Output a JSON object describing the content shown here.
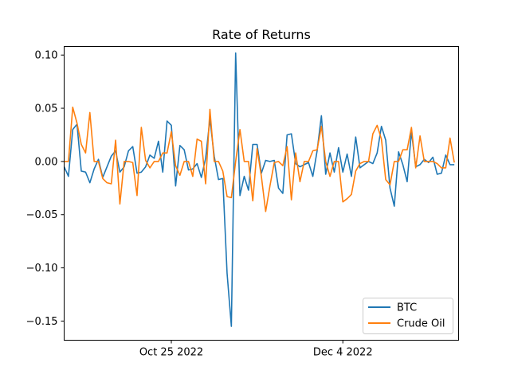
{
  "chart_data": {
    "type": "line",
    "title": "Rate of Returns",
    "xlabel": "",
    "ylabel": "",
    "x_start": "2022-09-30",
    "x_end": "2022-12-31",
    "x_ticks": [
      {
        "date": "2022-10-25",
        "label": "Oct 25 2022"
      },
      {
        "date": "2022-12-04",
        "label": "Dec 4 2022"
      }
    ],
    "ylim": [
      -0.168,
      0.108
    ],
    "y_ticks": [
      {
        "value": 0.1,
        "label": "0.10"
      },
      {
        "value": 0.05,
        "label": "0.05"
      },
      {
        "value": 0.0,
        "label": "0.00"
      },
      {
        "value": -0.05,
        "label": "−0.05"
      },
      {
        "value": -0.1,
        "label": "−0.10"
      },
      {
        "value": -0.15,
        "label": "−0.15"
      }
    ],
    "grid": false,
    "legend_position": "lower-right",
    "series": [
      {
        "name": "BTC",
        "color": "#1f77b4",
        "points": [
          [
            "2022-09-30",
            -0.005
          ],
          [
            "2022-10-01",
            -0.014
          ],
          [
            "2022-10-02",
            0.03
          ],
          [
            "2022-10-03",
            0.035
          ],
          [
            "2022-10-04",
            -0.009
          ],
          [
            "2022-10-05",
            -0.01
          ],
          [
            "2022-10-06",
            -0.02
          ],
          [
            "2022-10-07",
            -0.007
          ],
          [
            "2022-10-08",
            0.002
          ],
          [
            "2022-10-09",
            -0.015
          ],
          [
            "2022-10-10",
            -0.005
          ],
          [
            "2022-10-11",
            0.005
          ],
          [
            "2022-10-12",
            0.01
          ],
          [
            "2022-10-13",
            -0.01
          ],
          [
            "2022-10-14",
            -0.005
          ],
          [
            "2022-10-15",
            0.01
          ],
          [
            "2022-10-16",
            0.014
          ],
          [
            "2022-10-17",
            -0.011
          ],
          [
            "2022-10-18",
            -0.01
          ],
          [
            "2022-10-19",
            -0.005
          ],
          [
            "2022-10-20",
            0.006
          ],
          [
            "2022-10-21",
            0.003
          ],
          [
            "2022-10-22",
            0.019
          ],
          [
            "2022-10-23",
            -0.01
          ],
          [
            "2022-10-24",
            0.038
          ],
          [
            "2022-10-25",
            0.034
          ],
          [
            "2022-10-26",
            -0.023
          ],
          [
            "2022-10-27",
            0.015
          ],
          [
            "2022-10-28",
            0.011
          ],
          [
            "2022-10-29",
            -0.008
          ],
          [
            "2022-10-30",
            -0.007
          ],
          [
            "2022-10-31",
            -0.002
          ],
          [
            "2022-11-01",
            -0.015
          ],
          [
            "2022-11-02",
            0.003
          ],
          [
            "2022-11-03",
            0.04
          ],
          [
            "2022-11-04",
            0.005
          ],
          [
            "2022-11-05",
            -0.017
          ],
          [
            "2022-11-06",
            -0.016
          ],
          [
            "2022-11-07",
            -0.105
          ],
          [
            "2022-11-08",
            -0.155
          ],
          [
            "2022-11-09",
            0.102
          ],
          [
            "2022-11-10",
            -0.032
          ],
          [
            "2022-11-11",
            -0.014
          ],
          [
            "2022-11-12",
            -0.027
          ],
          [
            "2022-11-13",
            0.016
          ],
          [
            "2022-11-14",
            0.016
          ],
          [
            "2022-11-15",
            -0.011
          ],
          [
            "2022-11-16",
            0.001
          ],
          [
            "2022-11-17",
            0.0
          ],
          [
            "2022-11-18",
            0.001
          ],
          [
            "2022-11-19",
            -0.025
          ],
          [
            "2022-11-20",
            -0.03
          ],
          [
            "2022-11-21",
            0.025
          ],
          [
            "2022-11-22",
            0.026
          ],
          [
            "2022-11-23",
            -0.002
          ],
          [
            "2022-11-24",
            -0.005
          ],
          [
            "2022-11-25",
            -0.003
          ],
          [
            "2022-11-26",
            -0.001
          ],
          [
            "2022-11-27",
            -0.014
          ],
          [
            "2022-11-28",
            0.01
          ],
          [
            "2022-11-29",
            0.043
          ],
          [
            "2022-11-30",
            -0.012
          ],
          [
            "2022-12-01",
            0.008
          ],
          [
            "2022-12-02",
            -0.01
          ],
          [
            "2022-12-03",
            0.013
          ],
          [
            "2022-12-04",
            -0.01
          ],
          [
            "2022-12-05",
            0.007
          ],
          [
            "2022-12-06",
            -0.014
          ],
          [
            "2022-12-07",
            0.023
          ],
          [
            "2022-12-08",
            -0.006
          ],
          [
            "2022-12-09",
            -0.003
          ],
          [
            "2022-12-10",
            0.0
          ],
          [
            "2022-12-11",
            -0.002
          ],
          [
            "2022-12-12",
            0.008
          ],
          [
            "2022-12-13",
            0.033
          ],
          [
            "2022-12-14",
            0.02
          ],
          [
            "2022-12-15",
            -0.025
          ],
          [
            "2022-12-16",
            -0.042
          ],
          [
            "2022-12-17",
            0.009
          ],
          [
            "2022-12-18",
            -0.003
          ],
          [
            "2022-12-19",
            -0.019
          ],
          [
            "2022-12-20",
            0.028
          ],
          [
            "2022-12-21",
            -0.005
          ],
          [
            "2022-12-22",
            -0.003
          ],
          [
            "2022-12-23",
            0.002
          ],
          [
            "2022-12-24",
            -0.001
          ],
          [
            "2022-12-25",
            0.004
          ],
          [
            "2022-12-26",
            -0.012
          ],
          [
            "2022-12-27",
            -0.011
          ],
          [
            "2022-12-28",
            0.006
          ],
          [
            "2022-12-29",
            -0.003
          ],
          [
            "2022-12-30",
            -0.003
          ]
        ]
      },
      {
        "name": "Crude Oil",
        "color": "#ff7f0e",
        "points": [
          [
            "2022-09-30",
            0.0
          ],
          [
            "2022-10-01",
            0.0
          ],
          [
            "2022-10-02",
            0.051
          ],
          [
            "2022-10-03",
            0.036
          ],
          [
            "2022-10-04",
            0.016
          ],
          [
            "2022-10-05",
            0.008
          ],
          [
            "2022-10-06",
            0.046
          ],
          [
            "2022-10-07",
            0.0
          ],
          [
            "2022-10-08",
            0.0
          ],
          [
            "2022-10-09",
            -0.016
          ],
          [
            "2022-10-10",
            -0.02
          ],
          [
            "2022-10-11",
            -0.021
          ],
          [
            "2022-10-12",
            0.02
          ],
          [
            "2022-10-13",
            -0.04
          ],
          [
            "2022-10-14",
            0.0
          ],
          [
            "2022-10-15",
            0.0
          ],
          [
            "2022-10-16",
            -0.001
          ],
          [
            "2022-10-17",
            -0.032
          ],
          [
            "2022-10-18",
            0.032
          ],
          [
            "2022-10-19",
            0.001
          ],
          [
            "2022-10-20",
            -0.006
          ],
          [
            "2022-10-21",
            0.0
          ],
          [
            "2022-10-22",
            0.0
          ],
          [
            "2022-10-23",
            0.008
          ],
          [
            "2022-10-24",
            0.008
          ],
          [
            "2022-10-25",
            0.028
          ],
          [
            "2022-10-26",
            -0.004
          ],
          [
            "2022-10-27",
            -0.013
          ],
          [
            "2022-10-28",
            0.0
          ],
          [
            "2022-10-29",
            0.0
          ],
          [
            "2022-10-30",
            -0.014
          ],
          [
            "2022-10-31",
            0.021
          ],
          [
            "2022-11-01",
            0.019
          ],
          [
            "2022-11-02",
            -0.021
          ],
          [
            "2022-11-03",
            0.049
          ],
          [
            "2022-11-04",
            0.0
          ],
          [
            "2022-11-05",
            0.0
          ],
          [
            "2022-11-06",
            -0.009
          ],
          [
            "2022-11-07",
            -0.033
          ],
          [
            "2022-11-08",
            -0.034
          ],
          [
            "2022-11-09",
            0.0
          ],
          [
            "2022-11-10",
            0.03
          ],
          [
            "2022-11-11",
            0.0
          ],
          [
            "2022-11-12",
            0.0
          ],
          [
            "2022-11-13",
            -0.037
          ],
          [
            "2022-11-14",
            0.012
          ],
          [
            "2022-11-15",
            -0.014
          ],
          [
            "2022-11-16",
            -0.047
          ],
          [
            "2022-11-17",
            -0.023
          ],
          [
            "2022-11-18",
            -0.001
          ],
          [
            "2022-11-19",
            0.0
          ],
          [
            "2022-11-20",
            -0.004
          ],
          [
            "2022-11-21",
            0.014
          ],
          [
            "2022-11-22",
            -0.036
          ],
          [
            "2022-11-23",
            0.008
          ],
          [
            "2022-11-24",
            -0.019
          ],
          [
            "2022-11-25",
            0.0
          ],
          [
            "2022-11-26",
            0.0
          ],
          [
            "2022-11-27",
            0.01
          ],
          [
            "2022-11-28",
            0.011
          ],
          [
            "2022-11-29",
            0.033
          ],
          [
            "2022-11-30",
            0.0
          ],
          [
            "2022-12-01",
            -0.014
          ],
          [
            "2022-12-02",
            0.0
          ],
          [
            "2022-12-03",
            0.0
          ],
          [
            "2022-12-04",
            -0.038
          ],
          [
            "2022-12-05",
            -0.035
          ],
          [
            "2022-12-06",
            -0.031
          ],
          [
            "2022-12-07",
            -0.009
          ],
          [
            "2022-12-08",
            -0.002
          ],
          [
            "2022-12-09",
            0.0
          ],
          [
            "2022-12-10",
            0.0
          ],
          [
            "2022-12-11",
            0.026
          ],
          [
            "2022-12-12",
            0.034
          ],
          [
            "2022-12-13",
            0.021
          ],
          [
            "2022-12-14",
            -0.017
          ],
          [
            "2022-12-15",
            -0.022
          ],
          [
            "2022-12-16",
            0.0
          ],
          [
            "2022-12-17",
            0.0
          ],
          [
            "2022-12-18",
            0.011
          ],
          [
            "2022-12-19",
            0.011
          ],
          [
            "2022-12-20",
            0.032
          ],
          [
            "2022-12-21",
            -0.006
          ],
          [
            "2022-12-22",
            0.024
          ],
          [
            "2022-12-23",
            0.0
          ],
          [
            "2022-12-24",
            0.0
          ],
          [
            "2022-12-25",
            0.0
          ],
          [
            "2022-12-26",
            -0.002
          ],
          [
            "2022-12-27",
            -0.006
          ],
          [
            "2022-12-28",
            -0.006
          ],
          [
            "2022-12-29",
            0.022
          ],
          [
            "2022-12-30",
            -0.001
          ]
        ]
      }
    ]
  }
}
